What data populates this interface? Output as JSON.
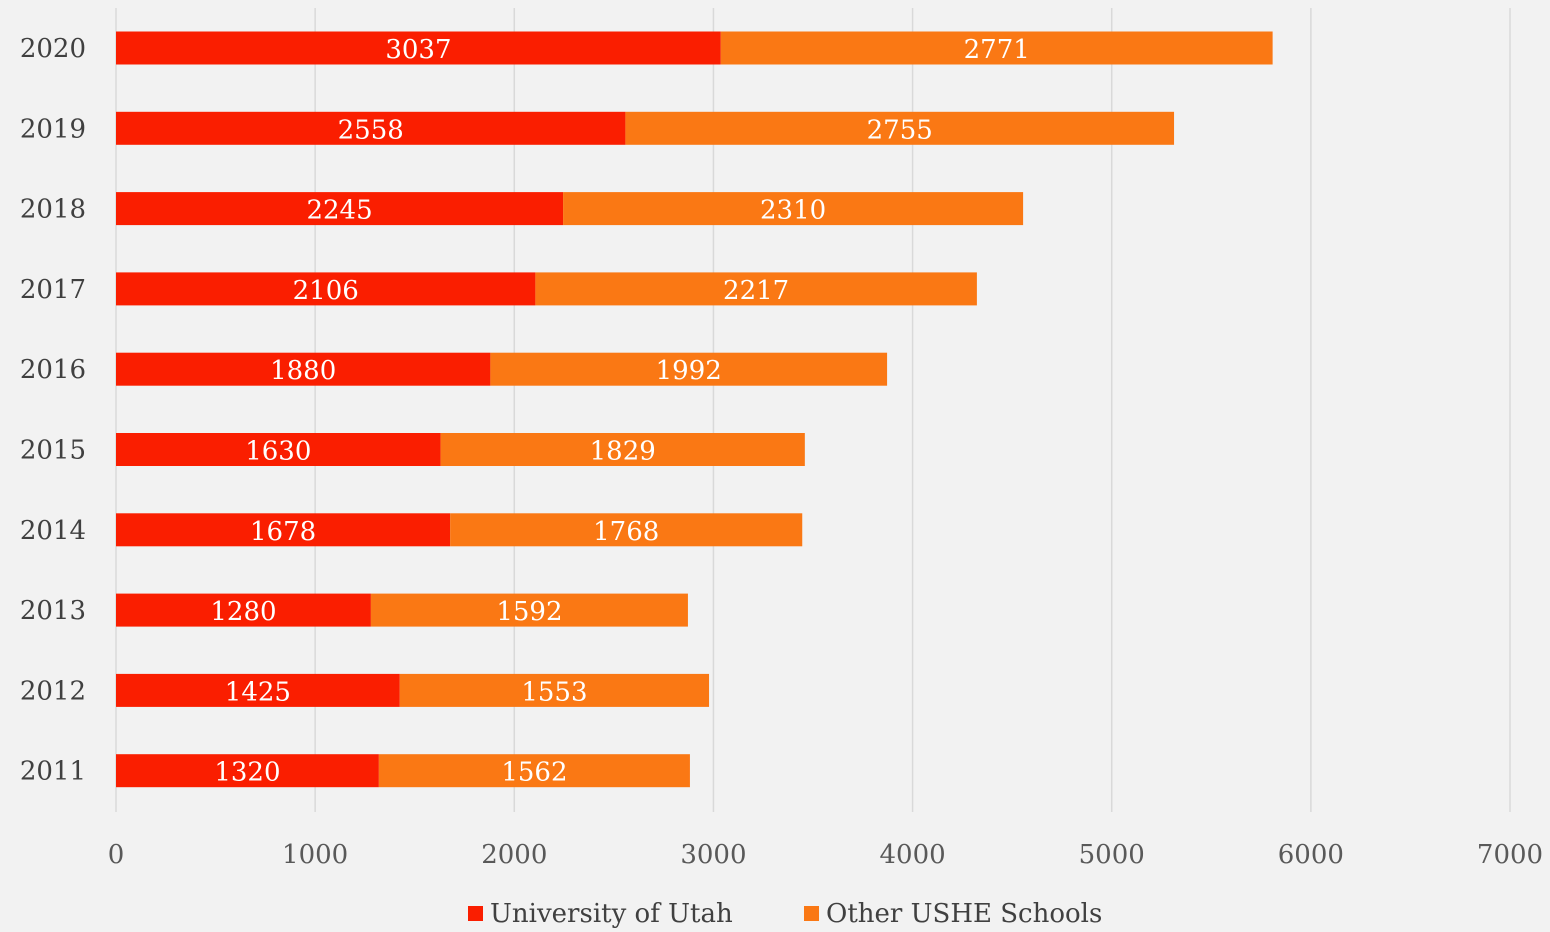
{
  "chart_data": {
    "type": "bar",
    "orientation": "horizontal",
    "stacked": true,
    "categories": [
      "2020",
      "2019",
      "2018",
      "2017",
      "2016",
      "2015",
      "2014",
      "2013",
      "2012",
      "2011"
    ],
    "series": [
      {
        "name": "University of Utah",
        "color": "#fa1e00",
        "values": [
          3037,
          2558,
          2245,
          2106,
          1880,
          1630,
          1678,
          1280,
          1425,
          1320
        ]
      },
      {
        "name": "Other USHE Schools",
        "color": "#fa7814",
        "values": [
          2771,
          2755,
          2310,
          2217,
          1992,
          1829,
          1768,
          1592,
          1553,
          1562
        ]
      }
    ],
    "xlim": [
      0,
      7000
    ],
    "xticks": [
      "0",
      "1000",
      "2000",
      "3000",
      "4000",
      "5000",
      "6000",
      "7000"
    ],
    "grid": "vertical",
    "legend_position": "bottom",
    "data_labels": true,
    "title": "",
    "xlabel": "",
    "ylabel": ""
  }
}
